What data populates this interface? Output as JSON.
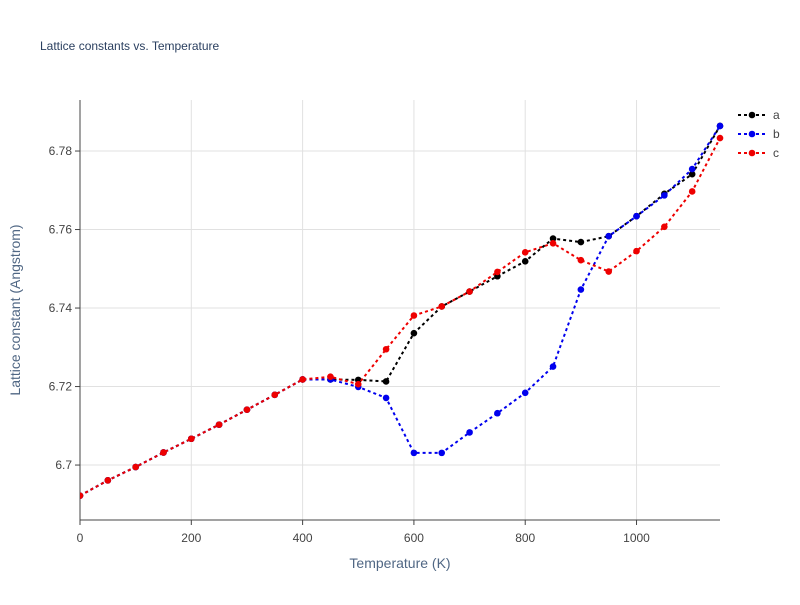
{
  "chart_data": {
    "type": "line",
    "title": "Lattice constants vs. Temperature",
    "xlabel": "Temperature (K)",
    "ylabel": "Lattice constant (Angstrom)",
    "xlim": [
      0,
      1150
    ],
    "ylim": [
      6.686,
      6.793
    ],
    "xticks": [
      0,
      200,
      400,
      600,
      800,
      1000
    ],
    "xtick_labels": [
      "0",
      "200",
      "400",
      "600",
      "800",
      "1000"
    ],
    "yticks": [
      6.7,
      6.72,
      6.74,
      6.76,
      6.78
    ],
    "ytick_labels": [
      "6.7",
      "6.72",
      "6.74",
      "6.76",
      "6.78"
    ],
    "grid": true,
    "legend_position": "top-right",
    "line_style": "dotted",
    "x": [
      0,
      50,
      100,
      150,
      200,
      250,
      300,
      350,
      400,
      450,
      500,
      550,
      600,
      650,
      700,
      750,
      800,
      850,
      900,
      950,
      1000,
      1050,
      1100,
      1150
    ],
    "series": [
      {
        "name": "a",
        "color": "#000000",
        "values": [
          6.6922,
          6.6961,
          6.6995,
          6.7032,
          6.7067,
          6.7103,
          6.7141,
          6.7179,
          6.7218,
          6.7218,
          6.7217,
          6.7213,
          6.7336,
          6.7404,
          6.7442,
          6.7481,
          6.7519,
          6.7577,
          6.7568,
          6.7583,
          6.7634,
          6.7691,
          6.7741,
          6.7864
        ]
      },
      {
        "name": "b",
        "color": "#0000ee",
        "values": [
          6.6922,
          6.6961,
          6.6995,
          6.7032,
          6.7067,
          6.7103,
          6.7141,
          6.7179,
          6.7218,
          6.7218,
          6.7199,
          6.7171,
          6.7031,
          6.7031,
          6.7083,
          6.7132,
          6.7184,
          6.7251,
          6.7447,
          6.7583,
          6.7634,
          6.7687,
          6.7754,
          6.7864
        ]
      },
      {
        "name": "c",
        "color": "#ee0000",
        "values": [
          6.6922,
          6.6961,
          6.6995,
          6.7032,
          6.7067,
          6.7103,
          6.7141,
          6.7179,
          6.7218,
          6.7225,
          6.7206,
          6.7295,
          6.7381,
          6.7404,
          6.7442,
          6.7492,
          6.7542,
          6.7565,
          6.7522,
          6.7493,
          6.7545,
          6.7607,
          6.7697,
          6.7833
        ]
      }
    ]
  }
}
